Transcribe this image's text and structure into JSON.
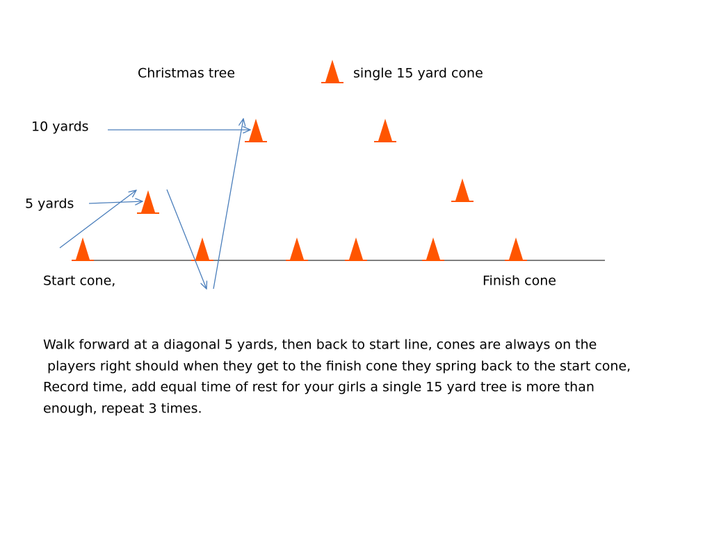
{
  "labels": {
    "title": "Christmas tree",
    "legend": "single 15 yard cone",
    "ten_yards": "10 yards",
    "five_yards": "5 yards",
    "start": "Start cone,",
    "finish": "Finish cone"
  },
  "description": [
    "Walk forward at a diagonal 5 yards, then back to start line, cones are always on the",
    " players right should when they get to the finish cone they spring back to the start cone,",
    "Record time, add equal time of rest for your girls a single 15 yard tree is more than",
    "enough, repeat 3 times."
  ]
}
